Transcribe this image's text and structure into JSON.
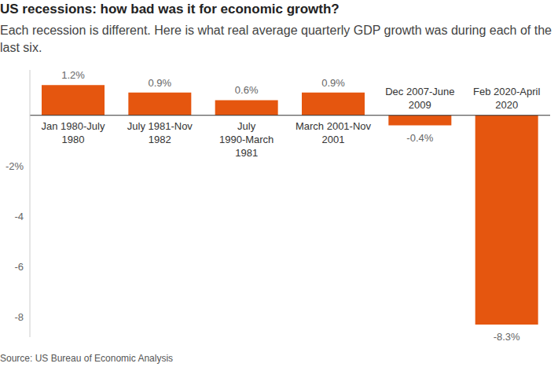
{
  "chart_data": {
    "type": "bar",
    "title": "US recessions: how bad was it for economic growth?",
    "subtitle": "Each recession is different. Here is what real average quarterly GDP growth was during each of the last six.",
    "source": "Source: US Bureau of Economic Analysis",
    "categories": [
      "Jan 1980-July 1980",
      "July 1981-Nov 1982",
      "July 1990-March 1981",
      "March 2001-Nov 2001",
      "Dec 2007-June 2009",
      "Feb 2020-April 2020"
    ],
    "values": [
      1.2,
      0.9,
      0.6,
      0.9,
      -0.4,
      -8.3
    ],
    "value_labels": [
      "1.2%",
      "0.9%",
      "0.6%",
      "0.9%",
      "-0.4%",
      "-8.3%"
    ],
    "color": "#e5560f",
    "ylim": [
      -8.8,
      1.8
    ],
    "yticks": [
      {
        "value": -2,
        "label": "-2%"
      },
      -4,
      -6,
      -8
    ],
    "grid": false,
    "data_labels": true
  }
}
